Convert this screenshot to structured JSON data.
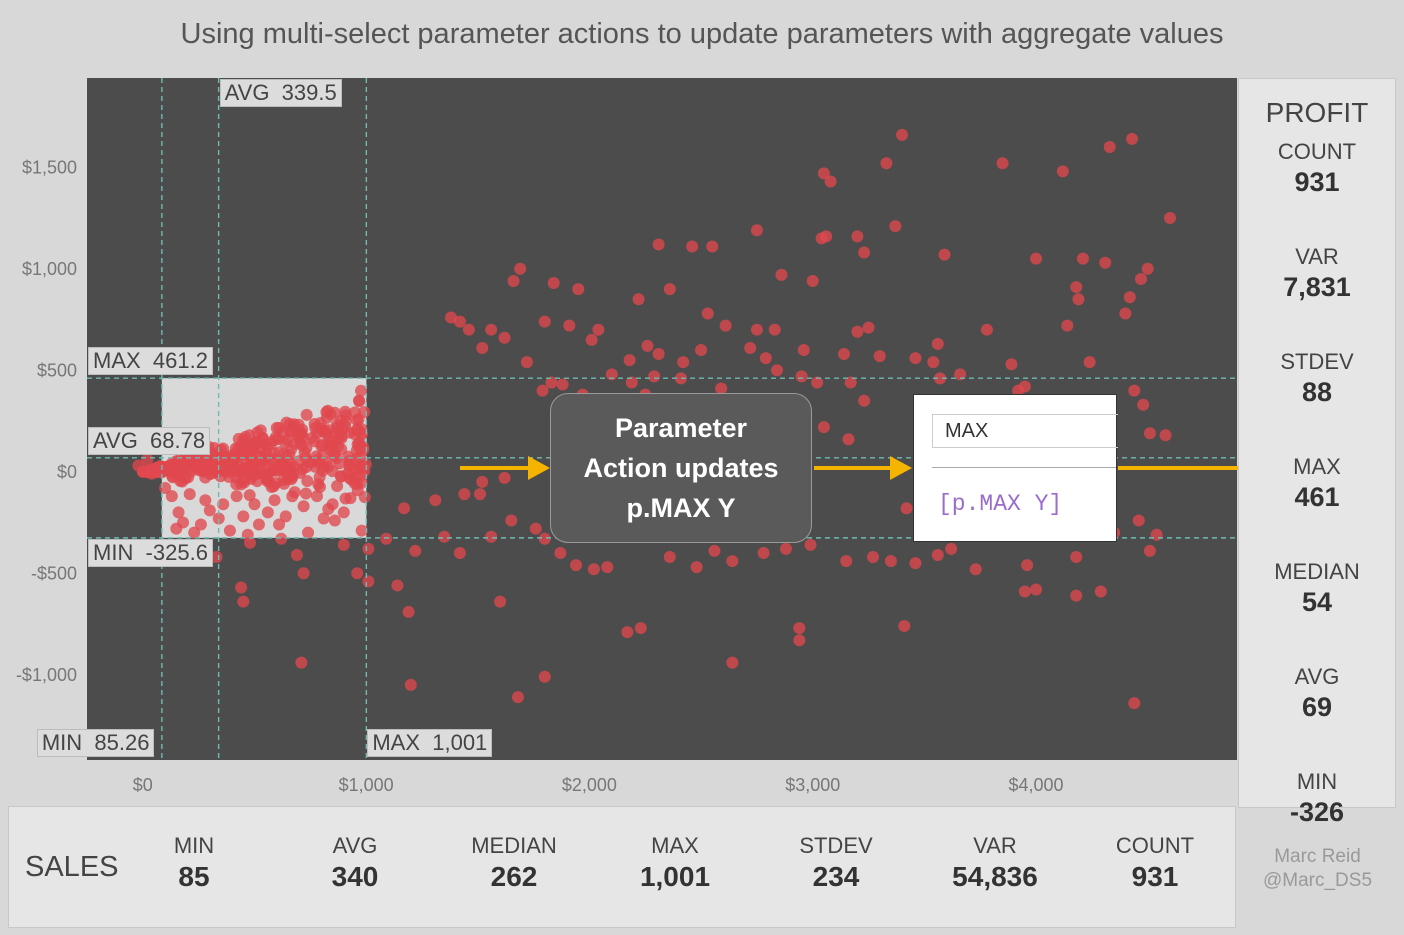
{
  "title": "Using multi-select parameter actions to update parameters with aggregate values",
  "chart_data": {
    "type": "scatter",
    "xlabel": "",
    "ylabel": "",
    "xlim": [
      -250,
      4900
    ],
    "ylim": [
      -1420,
      1940
    ],
    "x_ticks": [
      0,
      1000,
      2000,
      3000,
      4000
    ],
    "x_tick_labels": [
      "$0",
      "$1,000",
      "$2,000",
      "$3,000",
      "$4,000"
    ],
    "y_ticks": [
      -1000,
      -500,
      0,
      500,
      1000,
      1500
    ],
    "y_tick_labels": [
      "-$1,000",
      "-$500",
      "$0",
      "$500",
      "$1,000",
      "$1,500"
    ],
    "grid": false,
    "point_color": "#e0484e",
    "background": "#4c4c4c",
    "selection": {
      "x_min": 85.26,
      "x_max": 1001,
      "y_min": -325.6,
      "y_max": 461.2
    },
    "reference_lines": [
      {
        "axis": "x",
        "value": 85.26,
        "label": "MIN  85.26"
      },
      {
        "axis": "x",
        "value": 339.5,
        "label": "AVG  339.5"
      },
      {
        "axis": "x",
        "value": 1001,
        "label": "MAX  1,001"
      },
      {
        "axis": "y",
        "value": 461.2,
        "label": "MAX  461.2"
      },
      {
        "axis": "y",
        "value": 68.78,
        "label": "AVG  68.78"
      },
      {
        "axis": "y",
        "value": -325.6,
        "label": "MIN  -325.6"
      }
    ],
    "points": [
      [
        3400,
        1660
      ],
      [
        3330,
        1520
      ],
      [
        3050,
        1470
      ],
      [
        3080,
        1430
      ],
      [
        3850,
        1520
      ],
      [
        4120,
        1480
      ],
      [
        4330,
        1600
      ],
      [
        4430,
        1640
      ],
      [
        4600,
        1250
      ],
      [
        2310,
        1120
      ],
      [
        2460,
        1110
      ],
      [
        2550,
        1110
      ],
      [
        2750,
        1190
      ],
      [
        3040,
        1150
      ],
      [
        3060,
        1160
      ],
      [
        3200,
        1160
      ],
      [
        3230,
        1080
      ],
      [
        3370,
        1210
      ],
      [
        3590,
        1070
      ],
      [
        4000,
        1050
      ],
      [
        4210,
        1050
      ],
      [
        4310,
        1030
      ],
      [
        4500,
        1000
      ],
      [
        4470,
        950
      ],
      [
        4180,
        910
      ],
      [
        4420,
        860
      ],
      [
        4400,
        780
      ],
      [
        4190,
        850
      ],
      [
        4140,
        720
      ],
      [
        1690,
        1000
      ],
      [
        1660,
        940
      ],
      [
        1840,
        930
      ],
      [
        1950,
        900
      ],
      [
        2220,
        850
      ],
      [
        2360,
        900
      ],
      [
        2530,
        780
      ],
      [
        2860,
        970
      ],
      [
        3000,
        940
      ],
      [
        1560,
        700
      ],
      [
        2610,
        720
      ],
      [
        2750,
        700
      ],
      [
        2830,
        700
      ],
      [
        1800,
        740
      ],
      [
        1910,
        720
      ],
      [
        2040,
        700
      ],
      [
        3250,
        710
      ],
      [
        3200,
        690
      ],
      [
        3780,
        700
      ],
      [
        3560,
        630
      ],
      [
        1380,
        760
      ],
      [
        1420,
        740
      ],
      [
        1460,
        700
      ],
      [
        1520,
        610
      ],
      [
        1620,
        660
      ],
      [
        2010,
        650
      ],
      [
        2260,
        620
      ],
      [
        2310,
        580
      ],
      [
        2180,
        550
      ],
      [
        2420,
        540
      ],
      [
        2500,
        600
      ],
      [
        2720,
        610
      ],
      [
        2790,
        560
      ],
      [
        2960,
        600
      ],
      [
        3140,
        580
      ],
      [
        3300,
        570
      ],
      [
        3460,
        560
      ],
      [
        3540,
        540
      ],
      [
        3660,
        480
      ],
      [
        3570,
        460
      ],
      [
        3890,
        530
      ],
      [
        3950,
        420
      ],
      [
        3920,
        400
      ],
      [
        4170,
        350
      ],
      [
        4240,
        540
      ],
      [
        4440,
        400
      ],
      [
        4480,
        330
      ],
      [
        4510,
        190
      ],
      [
        4580,
        180
      ],
      [
        1720,
        540
      ],
      [
        1830,
        440
      ],
      [
        1790,
        400
      ],
      [
        1880,
        430
      ],
      [
        1970,
        380
      ],
      [
        2100,
        480
      ],
      [
        2190,
        440
      ],
      [
        2290,
        470
      ],
      [
        2250,
        380
      ],
      [
        2410,
        460
      ],
      [
        2450,
        350
      ],
      [
        2590,
        410
      ],
      [
        2840,
        500
      ],
      [
        2950,
        470
      ],
      [
        3020,
        440
      ],
      [
        3170,
        440
      ],
      [
        3230,
        350
      ],
      [
        3050,
        220
      ],
      [
        3160,
        160
      ],
      [
        2920,
        290
      ],
      [
        2620,
        270
      ],
      [
        1510,
        -110
      ],
      [
        1560,
        -320
      ],
      [
        1650,
        -240
      ],
      [
        1760,
        -280
      ],
      [
        1800,
        -330
      ],
      [
        1870,
        -400
      ],
      [
        1940,
        -460
      ],
      [
        2020,
        -480
      ],
      [
        2080,
        -470
      ],
      [
        2360,
        -420
      ],
      [
        2480,
        -470
      ],
      [
        2560,
        -390
      ],
      [
        2640,
        -440
      ],
      [
        2780,
        -400
      ],
      [
        2880,
        -380
      ],
      [
        2990,
        -360
      ],
      [
        3150,
        -440
      ],
      [
        3270,
        -420
      ],
      [
        3350,
        -440
      ],
      [
        3460,
        -450
      ],
      [
        3560,
        -410
      ],
      [
        3620,
        -380
      ],
      [
        3730,
        -480
      ],
      [
        3960,
        -460
      ],
      [
        3950,
        -590
      ],
      [
        4180,
        -420
      ],
      [
        4350,
        -300
      ],
      [
        4460,
        -240
      ],
      [
        4540,
        -310
      ],
      [
        4510,
        -390
      ],
      [
        2170,
        -790
      ],
      [
        2230,
        -770
      ],
      [
        2940,
        -770
      ],
      [
        2940,
        -830
      ],
      [
        1600,
        -640
      ],
      [
        1800,
        -1010
      ],
      [
        1680,
        -1110
      ],
      [
        2640,
        -940
      ],
      [
        3410,
        -760
      ],
      [
        4000,
        -580
      ],
      [
        4180,
        -610
      ],
      [
        4290,
        -590
      ],
      [
        4440,
        -1140
      ],
      [
        2820,
        -170
      ],
      [
        3420,
        -180
      ],
      [
        -20,
        30
      ],
      [
        20,
        60
      ],
      [
        40,
        -10
      ],
      [
        60,
        20
      ],
      [
        100,
        -80
      ],
      [
        130,
        -120
      ],
      [
        160,
        -200
      ],
      [
        180,
        -250
      ],
      [
        150,
        -280
      ],
      [
        210,
        -110
      ],
      [
        230,
        -300
      ],
      [
        260,
        -260
      ],
      [
        280,
        -140
      ],
      [
        300,
        -190
      ],
      [
        340,
        -230
      ],
      [
        360,
        -160
      ],
      [
        390,
        -290
      ],
      [
        420,
        -120
      ],
      [
        450,
        -220
      ],
      [
        470,
        -310
      ],
      [
        500,
        -160
      ],
      [
        520,
        -260
      ],
      [
        560,
        -200
      ],
      [
        590,
        -140
      ],
      [
        610,
        -260
      ],
      [
        640,
        -220
      ],
      [
        680,
        -100
      ],
      [
        720,
        -170
      ],
      [
        740,
        -300
      ],
      [
        780,
        -120
      ],
      [
        810,
        -230
      ],
      [
        850,
        -160
      ],
      [
        870,
        -70
      ],
      [
        900,
        -200
      ],
      [
        930,
        -130
      ],
      [
        960,
        -60
      ],
      [
        980,
        -290
      ],
      [
        330,
        -420
      ],
      [
        440,
        -570
      ],
      [
        480,
        -350
      ],
      [
        620,
        -330
      ],
      [
        690,
        -410
      ],
      [
        720,
        -500
      ],
      [
        900,
        -360
      ],
      [
        860,
        -240
      ],
      [
        1010,
        -380
      ],
      [
        960,
        -500
      ],
      [
        1010,
        -540
      ],
      [
        1090,
        -330
      ],
      [
        1170,
        -180
      ],
      [
        1220,
        -390
      ],
      [
        1190,
        -690
      ],
      [
        450,
        -640
      ],
      [
        710,
        -940
      ],
      [
        1200,
        -1050
      ],
      [
        1140,
        -560
      ],
      [
        1310,
        -140
      ],
      [
        1350,
        -320
      ],
      [
        1420,
        -400
      ],
      [
        1440,
        -110
      ],
      [
        1520,
        -50
      ],
      [
        1620,
        -30
      ]
    ]
  },
  "callout": {
    "line1": "Parameter",
    "line2": "Action updates",
    "line3": "p.MAX Y"
  },
  "calc_editor": {
    "name": "MAX",
    "formula": "[p.MAX Y]"
  },
  "profit": {
    "header": "PROFIT",
    "stats": [
      {
        "label": "COUNT",
        "value": "931"
      },
      {
        "label": "VAR",
        "value": "7,831"
      },
      {
        "label": "STDEV",
        "value": "88"
      },
      {
        "label": "MAX",
        "value": "461"
      },
      {
        "label": "MEDIAN",
        "value": "54"
      },
      {
        "label": "AVG",
        "value": "69"
      },
      {
        "label": "MIN",
        "value": "-326"
      }
    ]
  },
  "sales": {
    "header": "SALES",
    "stats": [
      {
        "label": "MIN",
        "value": "85"
      },
      {
        "label": "AVG",
        "value": "340"
      },
      {
        "label": "MEDIAN",
        "value": "262"
      },
      {
        "label": "MAX",
        "value": "1,001"
      },
      {
        "label": "STDEV",
        "value": "234"
      },
      {
        "label": "VAR",
        "value": "54,836"
      },
      {
        "label": "COUNT",
        "value": "931"
      }
    ]
  },
  "credit": {
    "line1": "Marc Reid",
    "line2": "@Marc_DS5"
  },
  "colors": {
    "arrow": "#f5b400",
    "ref_line": "#6fbab2",
    "selection_fill": "#d9d9d9"
  }
}
